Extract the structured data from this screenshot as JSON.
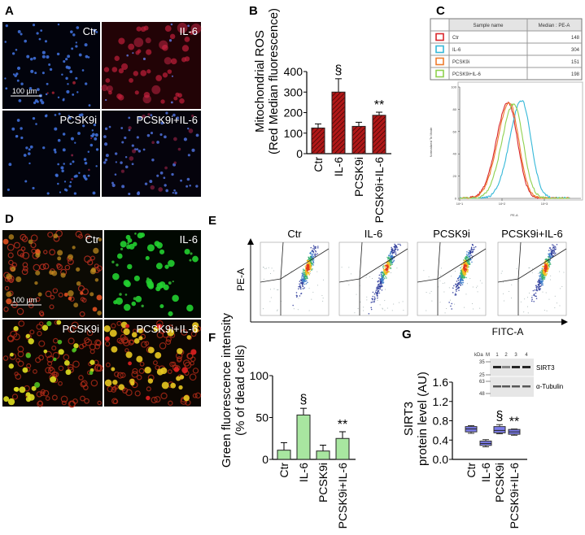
{
  "panel_letters": {
    "a": "A",
    "b": "B",
    "c": "C",
    "d": "D",
    "e": "E",
    "f": "F",
    "g": "G"
  },
  "panel_a": {
    "labels": [
      "Ctr",
      "IL-6",
      "PCSK9i",
      "PCSK9i+IL-6"
    ],
    "scale_bar": "100 µm"
  },
  "panel_d": {
    "labels": [
      "Ctr",
      "IL-6",
      "PCSK9i",
      "PCSK9i+IL-6"
    ],
    "scale_bar": "100 µm"
  },
  "chart_data": [
    {
      "id": "B",
      "type": "bar",
      "categories": [
        "Ctr",
        "IL-6",
        "PCSK9i",
        "PCSK9i+IL-6"
      ],
      "values": [
        125,
        300,
        133,
        187
      ],
      "errors": [
        20,
        65,
        20,
        15
      ],
      "ylabel": [
        "Mitochondrial ROS",
        "(Red Median fluorescence)"
      ],
      "ylim": [
        0,
        400
      ],
      "yticks": [
        0,
        100,
        200,
        300,
        400
      ],
      "annotations": [
        {
          "category": "IL-6",
          "text": "§"
        },
        {
          "category": "PCSK9i+IL-6",
          "text": "**"
        }
      ],
      "color": "#b01818"
    },
    {
      "id": "C",
      "type": "line",
      "title_table": {
        "headers": [
          "Sample name",
          "Median : PE-A"
        ],
        "rows": [
          {
            "name": "Ctr",
            "median": "148",
            "color": "#d9262b"
          },
          {
            "name": "IL-6",
            "median": "304",
            "color": "#35b8d8"
          },
          {
            "name": "PCSK9i",
            "median": "151",
            "color": "#ee7d2e"
          },
          {
            "name": "PCSK9i+IL-6",
            "median": "198",
            "color": "#8fd14f"
          }
        ]
      },
      "xlabel": "PE-A",
      "ylabel": "Normalized To Mode",
      "xscale": "log",
      "xticks": [
        "10^1",
        "10^2",
        "10^3"
      ],
      "ylim": [
        0,
        100
      ],
      "yticks": [
        0,
        20,
        40,
        60,
        80,
        100
      ],
      "series": [
        {
          "name": "Ctr",
          "peak_x": 140,
          "peak_y": 86
        },
        {
          "name": "IL-6",
          "peak_x": 290,
          "peak_y": 88
        },
        {
          "name": "PCSK9i",
          "peak_x": 150,
          "peak_y": 86
        },
        {
          "name": "PCSK9i+IL-6",
          "peak_x": 190,
          "peak_y": 85
        }
      ]
    },
    {
      "id": "E",
      "type": "scatter",
      "panels": [
        "Ctr",
        "IL-6",
        "PCSK9i",
        "PCSK9i+IL-6"
      ],
      "xlabel": "FITC-A",
      "ylabel": "PE-A"
    },
    {
      "id": "F",
      "type": "bar",
      "categories": [
        "Ctr",
        "IL-6",
        "PCSK9i",
        "PCSK9i+IL-6"
      ],
      "values": [
        11,
        53,
        10,
        25
      ],
      "errors": [
        9,
        8,
        7,
        8
      ],
      "ylabel": [
        "Green fluorescence intensity",
        "(% of dead cells)"
      ],
      "ylim": [
        0,
        100
      ],
      "yticks": [
        0,
        50,
        100
      ],
      "annotations": [
        {
          "category": "IL-6",
          "text": "§"
        },
        {
          "category": "PCSK9i+IL-6",
          "text": "**"
        }
      ],
      "color": "#a8e6a0"
    },
    {
      "id": "G",
      "type": "box",
      "categories": [
        "Ctr",
        "IL-6",
        "PCSK9i",
        "PCSK9i+IL-6"
      ],
      "boxes": [
        {
          "min": 0.54,
          "q1": 0.57,
          "median": 0.63,
          "q3": 0.68,
          "max": 0.7
        },
        {
          "min": 0.26,
          "q1": 0.29,
          "median": 0.33,
          "q3": 0.38,
          "max": 0.41
        },
        {
          "min": 0.53,
          "q1": 0.55,
          "median": 0.6,
          "q3": 0.68,
          "max": 0.72
        },
        {
          "min": 0.5,
          "q1": 0.52,
          "median": 0.57,
          "q3": 0.62,
          "max": 0.63
        }
      ],
      "ylabel": [
        "SIRT3",
        "protein level (AU)"
      ],
      "ylim": [
        0,
        1.6
      ],
      "yticks": [
        "0.0",
        "0.4",
        "0.8",
        "1.2",
        "1.6"
      ],
      "annotations": [
        {
          "category": "PCSK9i",
          "text": "§"
        },
        {
          "category": "PCSK9i+IL-6",
          "text": "**"
        }
      ],
      "color": "#7b7be8",
      "blot": {
        "kda_label": "kDa",
        "marker_label": "M",
        "lanes": [
          "1",
          "2",
          "3",
          "4"
        ],
        "markers": [
          "35",
          "25",
          "63",
          "48"
        ],
        "bands": [
          "SIRT3",
          "α-Tubulin"
        ],
        "sirt3_intensity": [
          0.9,
          0.45,
          0.9,
          0.9
        ]
      }
    }
  ]
}
